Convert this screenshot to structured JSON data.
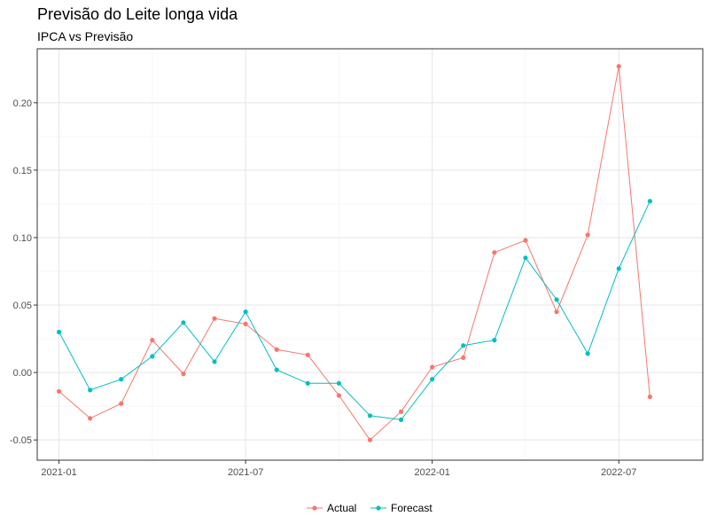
{
  "chart_data": {
    "type": "line",
    "title": "Previsão do Leite longa vida",
    "subtitle": "IPCA vs Previsão",
    "xlabel": "",
    "ylabel": "",
    "x_ticks": [
      "2021-01",
      "2021-07",
      "2022-01",
      "2022-07"
    ],
    "y_ticks": [
      "-0.05",
      "0.00",
      "0.05",
      "0.10",
      "0.15",
      "0.20"
    ],
    "x": [
      "2021-01",
      "2021-02",
      "2021-03",
      "2021-04",
      "2021-05",
      "2021-06",
      "2021-07",
      "2021-08",
      "2021-09",
      "2021-10",
      "2021-11",
      "2021-12",
      "2022-01",
      "2022-02",
      "2022-03",
      "2022-04",
      "2022-05",
      "2022-06",
      "2022-07",
      "2022-08"
    ],
    "ylim": [
      -0.065,
      0.24
    ],
    "grid": true,
    "legend_position": "bottom",
    "series": [
      {
        "name": "Actual",
        "color": "#F8766D",
        "values": [
          -0.014,
          -0.034,
          -0.023,
          0.024,
          -0.001,
          0.04,
          0.036,
          0.017,
          0.013,
          -0.017,
          -0.05,
          -0.029,
          0.004,
          0.011,
          0.089,
          0.098,
          0.045,
          0.102,
          0.227,
          -0.018
        ]
      },
      {
        "name": "Forecast",
        "color": "#00BFC4",
        "values": [
          0.03,
          -0.013,
          -0.005,
          0.012,
          0.037,
          0.008,
          0.045,
          0.002,
          -0.008,
          -0.008,
          -0.032,
          -0.035,
          -0.005,
          0.02,
          0.024,
          0.085,
          0.054,
          0.014,
          0.077,
          0.127
        ]
      }
    ]
  }
}
